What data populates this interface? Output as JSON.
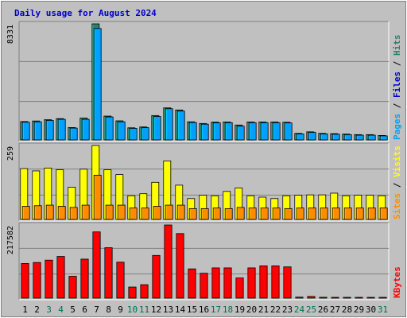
{
  "chart_data": {
    "type": "bar",
    "title": "Daily usage for August 2024",
    "days": [
      "1",
      "2",
      "3",
      "4",
      "5",
      "6",
      "7",
      "8",
      "9",
      "10",
      "11",
      "12",
      "13",
      "14",
      "15",
      "16",
      "17",
      "18",
      "19",
      "20",
      "21",
      "22",
      "23",
      "24",
      "25",
      "26",
      "27",
      "28",
      "29",
      "30",
      "31"
    ],
    "weekend_days": [
      "3",
      "4",
      "10",
      "11",
      "17",
      "18",
      "24",
      "25",
      "31"
    ],
    "colors": {
      "background": "#c0c0c0",
      "frame": "#808080",
      "grid": "#808080",
      "hits": "#2f7f6f",
      "files": "#00a0ff",
      "pages": "#2f5fb0",
      "visits": "#ffff00",
      "sites": "#ff8c00",
      "kbytes": "#ff0000",
      "weekday_label": "#000000",
      "weekend_label": "#007050",
      "title": "#0000cc"
    },
    "panels": [
      {
        "id": "hits",
        "max_label": "8331",
        "ylim": [
          0,
          8331
        ],
        "right_label": [
          {
            "text": "Pages",
            "color": "#00a0ff"
          },
          {
            "text": " / ",
            "color": "#000000"
          },
          {
            "text": "Files",
            "color": "#0000cc"
          },
          {
            "text": " / ",
            "color": "#000000"
          },
          {
            "text": "Hits",
            "color": "#2f7f6f"
          }
        ],
        "series": [
          {
            "name": "Hits",
            "color": "#2f7f6f",
            "values": [
              1320,
              1360,
              1450,
              1530,
              890,
              1570,
              8331,
              1710,
              1370,
              870,
              930,
              1750,
              2300,
              2150,
              1300,
              1180,
              1280,
              1290,
              1070,
              1290,
              1290,
              1290,
              1270,
              470,
              580,
              470,
              450,
              420,
              380,
              380,
              320
            ]
          },
          {
            "name": "Files",
            "color": "#00a0ff",
            "values": [
              1270,
              1300,
              1400,
              1480,
              850,
              1480,
              8000,
              1650,
              1300,
              830,
              880,
              1680,
              2240,
              2070,
              1250,
              1130,
              1230,
              1240,
              990,
              1240,
              1240,
              1240,
              1220,
              430,
              540,
              430,
              410,
              380,
              340,
              340,
              290
            ]
          }
        ]
      },
      {
        "id": "visits",
        "max_label": "259",
        "ylim": [
          0,
          259
        ],
        "right_label": [
          {
            "text": "Sites",
            "color": "#ff8c00"
          },
          {
            "text": " / ",
            "color": "#000000"
          },
          {
            "text": "Visits",
            "color": "#ffff00"
          }
        ],
        "series": [
          {
            "name": "Visits",
            "color": "#ffff00",
            "values": [
              178,
              170,
              180,
              174,
              113,
              176,
              259,
              174,
              157,
              83,
              90,
              130,
              205,
              120,
              73,
              85,
              83,
              98,
              110,
              83,
              78,
              73,
              83,
              85,
              86,
              86,
              92,
              83,
              85,
              85,
              83
            ]
          },
          {
            "name": "Sites",
            "color": "#ff8c00",
            "values": [
              46,
              48,
              50,
              46,
              42,
              50,
              155,
              50,
              50,
              40,
              40,
              46,
              50,
              50,
              38,
              38,
              40,
              38,
              42,
              40,
              40,
              40,
              38,
              40,
              40,
              40,
              40,
              40,
              40,
              40,
              40
            ]
          }
        ]
      },
      {
        "id": "kbytes",
        "max_label": "217582",
        "ylim": [
          0,
          217582
        ],
        "right_label": [
          {
            "text": "KBytes",
            "color": "#ff0000"
          }
        ],
        "series": [
          {
            "name": "KBytes",
            "color": "#ff0000",
            "values": [
              103000,
              106000,
              113000,
              124000,
              65000,
              116000,
              197000,
              150000,
              107000,
              33000,
              40000,
              127000,
              217582,
              192000,
              87000,
              74000,
              90000,
              90000,
              60000,
              90000,
              96000,
              96000,
              93000,
              3000,
              5000,
              2500,
              2000,
              2000,
              2000,
              2000,
              2000
            ]
          }
        ]
      }
    ]
  }
}
